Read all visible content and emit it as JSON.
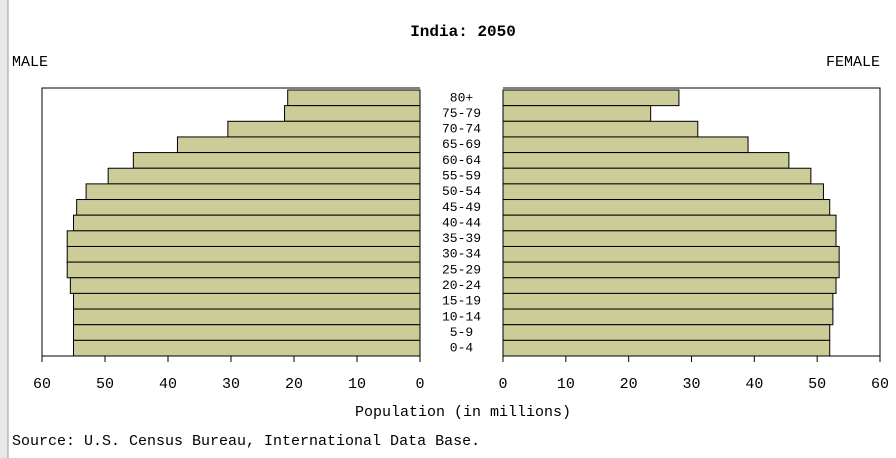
{
  "chart_data": {
    "type": "pyramid",
    "title": "India: 2050",
    "categories": [
      "80+",
      "75-79",
      "70-74",
      "65-69",
      "60-64",
      "55-59",
      "50-54",
      "45-49",
      "40-44",
      "35-39",
      "30-34",
      "25-29",
      "20-24",
      "15-19",
      "10-14",
      "5-9",
      "0-4"
    ],
    "series": [
      {
        "name": "MALE",
        "color": "#cccc99",
        "values": [
          21,
          21.5,
          30.5,
          38.5,
          45.5,
          49.5,
          53,
          54.5,
          55,
          56,
          56,
          56,
          55.5,
          55,
          55,
          55,
          55
        ]
      },
      {
        "name": "FEMALE",
        "color": "#cccc99",
        "values": [
          28,
          23.5,
          31,
          39,
          45.5,
          49,
          51,
          52,
          53,
          53,
          53.5,
          53.5,
          53,
          52.5,
          52.5,
          52,
          52
        ]
      }
    ],
    "xlim": [
      0,
      60
    ],
    "xticks": [
      0,
      10,
      20,
      30,
      40,
      50,
      60
    ],
    "x_label": "Population (in millions)",
    "source": "Source: U.S. Census Bureau, International Data Base."
  }
}
